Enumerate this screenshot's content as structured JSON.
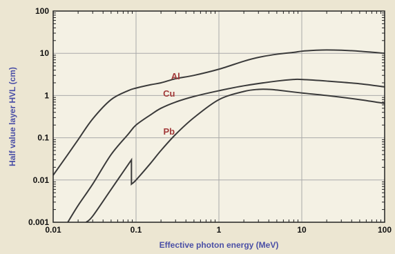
{
  "chart_data": {
    "type": "line",
    "xlabel": "Effective photon energy (MeV)",
    "ylabel": "Half value layer HVL  (cm)",
    "x_scale": "log",
    "y_scale": "log",
    "xlim": [
      0.01,
      100
    ],
    "ylim": [
      0.001,
      100
    ],
    "x_ticks": [
      "0.01",
      "0.1",
      "1",
      "10",
      "100"
    ],
    "y_ticks": [
      "0.001",
      "0.01",
      "0.1",
      "1",
      "10",
      "100"
    ],
    "grid": true,
    "series": [
      {
        "name": "Al",
        "x": [
          0.01,
          0.015,
          0.02,
          0.03,
          0.05,
          0.08,
          0.1,
          0.15,
          0.2,
          0.3,
          0.5,
          1,
          2,
          3,
          5,
          8,
          10,
          15,
          20,
          30,
          50,
          100
        ],
        "y": [
          0.013,
          0.04,
          0.09,
          0.28,
          0.8,
          1.3,
          1.5,
          1.8,
          2.0,
          2.5,
          3.0,
          4.2,
          6.5,
          8.0,
          9.5,
          10.5,
          11.2,
          11.8,
          12.0,
          11.8,
          11.2,
          10.0
        ]
      },
      {
        "name": "Cu",
        "x": [
          0.015,
          0.02,
          0.03,
          0.05,
          0.08,
          0.1,
          0.15,
          0.2,
          0.3,
          0.5,
          1,
          2,
          5,
          8,
          10,
          20,
          50,
          100
        ],
        "y": [
          0.001,
          0.0025,
          0.008,
          0.04,
          0.12,
          0.2,
          0.35,
          0.5,
          0.7,
          0.95,
          1.3,
          1.7,
          2.2,
          2.4,
          2.4,
          2.2,
          1.9,
          1.6
        ]
      },
      {
        "name": "Pb",
        "x": [
          0.025,
          0.03,
          0.05,
          0.088,
          0.088,
          0.1,
          0.15,
          0.2,
          0.3,
          0.5,
          1,
          2,
          3,
          4,
          5,
          10,
          20,
          50,
          100
        ],
        "y": [
          0.001,
          0.0014,
          0.006,
          0.03,
          0.008,
          0.01,
          0.025,
          0.05,
          0.12,
          0.3,
          0.8,
          1.25,
          1.4,
          1.4,
          1.35,
          1.15,
          1.0,
          0.8,
          0.65
        ]
      }
    ],
    "series_labels": [
      {
        "text": "Al",
        "x": 0.3,
        "y": 2.4
      },
      {
        "text": "Cu",
        "x": 0.25,
        "y": 0.95
      },
      {
        "text": "Pb",
        "x": 0.25,
        "y": 0.12
      }
    ],
    "colors": {
      "line": "#3a3a3a",
      "grid": "#a9a9a9",
      "series_label": "#a23a3a",
      "axis_label": "#4a4fa6",
      "plot_bg": "#f4f1e4",
      "page_bg": "#ece6d2"
    }
  }
}
